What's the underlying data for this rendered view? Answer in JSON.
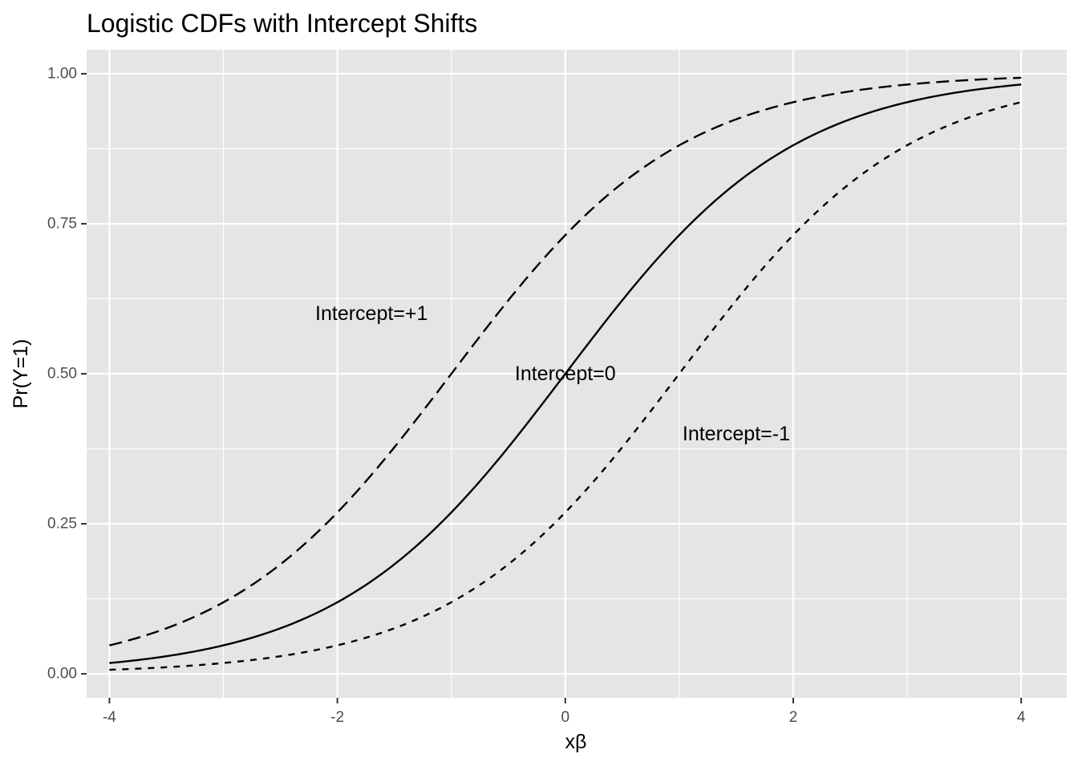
{
  "chart_data": {
    "type": "line",
    "title": "Logistic CDFs with Intercept Shifts",
    "xlabel": "xβ",
    "ylabel": "Pr(Y=1)",
    "xlim": [
      -4.2,
      4.4
    ],
    "ylim": [
      -0.04,
      1.04
    ],
    "x_ticks": [
      -4,
      -2,
      0,
      2,
      4
    ],
    "x_tick_labels": [
      "-4",
      "-2",
      "0",
      "2",
      "4"
    ],
    "y_ticks": [
      0,
      0.25,
      0.5,
      0.75,
      1
    ],
    "y_tick_labels": [
      "0.00",
      "0.25",
      "0.50",
      "0.75",
      "1.00"
    ],
    "x_minor": [
      -3,
      -1,
      1,
      3
    ],
    "y_minor": [
      0.125,
      0.375,
      0.625,
      0.875
    ],
    "grid": true,
    "legend": "none",
    "x": [
      -4,
      -3,
      -2,
      -1,
      0,
      1,
      2,
      3,
      4
    ],
    "series": [
      {
        "name": "Intercept=+1",
        "linestyle": "longdash",
        "values": [
          0.047,
          0.119,
          0.269,
          0.5,
          0.731,
          0.881,
          0.953,
          0.982,
          0.993
        ]
      },
      {
        "name": "Intercept=0",
        "linestyle": "solid",
        "values": [
          0.018,
          0.047,
          0.119,
          0.269,
          0.5,
          0.731,
          0.881,
          0.953,
          0.982
        ]
      },
      {
        "name": "Intercept=-1",
        "linestyle": "dashed",
        "values": [
          0.007,
          0.018,
          0.047,
          0.119,
          0.269,
          0.5,
          0.731,
          0.881,
          0.953
        ]
      }
    ],
    "annotations": [
      {
        "text": "Intercept=+1",
        "x": -1.7,
        "y": 0.6
      },
      {
        "text": "Intercept=0",
        "x": 0,
        "y": 0.5
      },
      {
        "text": "Intercept=-1",
        "x": 1.5,
        "y": 0.4
      }
    ],
    "colors": {
      "panel": "#e5e5e5",
      "grid": "#ffffff",
      "line": "#000000",
      "tick_text": "#4d4d4d"
    }
  }
}
